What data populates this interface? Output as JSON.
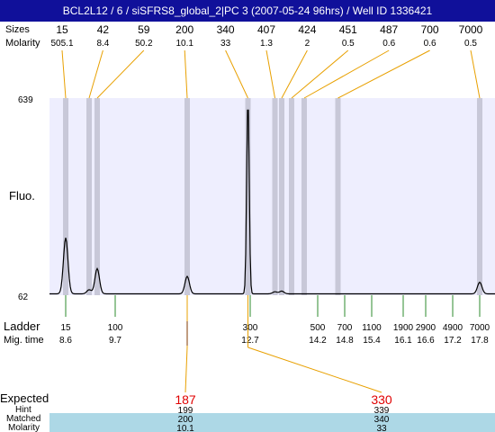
{
  "title": "BCL2L12 / 6 / siSFRS8_global_2|PC 3 (2007-05-24 96hrs) / Well ID 1336421",
  "labels": {
    "sizes": "Sizes",
    "molarity": "Molarity",
    "fluo": "Fluo.",
    "ladder": "Ladder",
    "mig_time": "Mig. time",
    "expected": "Expected",
    "hint": "Hint",
    "matched": "Matched",
    "molarity_bottom": "Molarity"
  },
  "colors": {
    "title_bg": "#10109a",
    "plot_bg": "#eeeefe",
    "band": "#c8c8d8",
    "trace": "#000000",
    "peak_connector": "#e8a000",
    "ladder_tick": "#2e8b2e",
    "expected": "#e00000",
    "bottom_rows_bg": "#add8e6",
    "marker": "#0000ff"
  },
  "chart_data": {
    "type": "line",
    "title": "BCL2L12 / 6 / siSFRS8_global_2|PC 3 (2007-05-24 96hrs) / Well ID 1336421",
    "ylabel": "Fluo.",
    "xlabel": "Mig. time",
    "ylim": [
      62,
      639
    ],
    "xlim": [
      8.24,
      18.14
    ],
    "y_ticks": [
      "639",
      "62"
    ],
    "peaks": [
      {
        "size": "15",
        "molarity": "505.1",
        "time": 8.6,
        "height": 230
      },
      {
        "size": "42",
        "molarity": "8.4",
        "time": 9.12,
        "height": 78
      },
      {
        "size": "59",
        "molarity": "50.2",
        "time": 9.3,
        "height": 140
      },
      {
        "size": "200",
        "molarity": "10.1",
        "time": 11.3,
        "height": 117
      },
      {
        "size": "340",
        "molarity": "33",
        "time": 12.65,
        "height": 639
      },
      {
        "size": "407",
        "molarity": "1.3",
        "time": 13.25,
        "height": 72
      },
      {
        "size": "424",
        "molarity": "2",
        "time": 13.4,
        "height": 74
      },
      {
        "size": "451",
        "molarity": "0.5",
        "time": 13.62,
        "height": 66
      },
      {
        "size": "487",
        "molarity": "0.6",
        "time": 13.9,
        "height": 66
      },
      {
        "size": "700",
        "molarity": "0.6",
        "time": 14.65,
        "height": 66
      },
      {
        "size": "7000",
        "molarity": "0.5",
        "time": 17.8,
        "height": 100
      }
    ],
    "ladder": [
      {
        "size": "15",
        "time": "8.6"
      },
      {
        "size": "100",
        "time": "9.7"
      },
      {
        "size": "300",
        "time": "12.7"
      },
      {
        "size": "500",
        "time": "14.2"
      },
      {
        "size": "700",
        "time": "14.8"
      },
      {
        "size": "1100",
        "time": "15.4"
      },
      {
        "size": "1900",
        "time": "16.1"
      },
      {
        "size": "2900",
        "time": "16.6"
      },
      {
        "size": "4900",
        "time": "17.2"
      },
      {
        "size": "7000",
        "time": "17.8"
      }
    ],
    "expected": [
      {
        "expected": "187",
        "hint": "199",
        "matched": "200",
        "molarity": "10.1",
        "time": 11.3
      },
      {
        "expected": "330",
        "hint": "339",
        "matched": "340",
        "molarity": "33",
        "time": 12.65
      }
    ]
  }
}
